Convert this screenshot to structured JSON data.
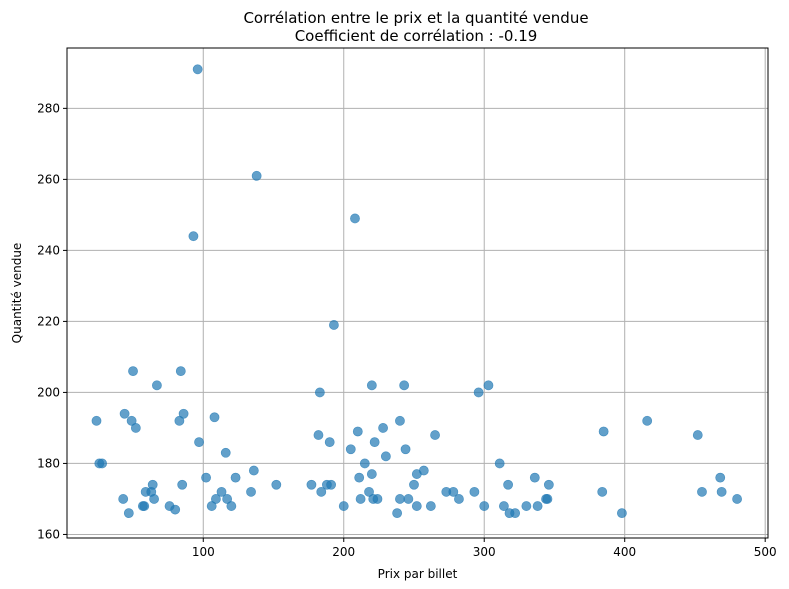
{
  "chart_data": {
    "type": "scatter",
    "title": "Corrélation entre le prix et la quantité vendue",
    "subtitle": "Coefficient de corrélation : -0.19",
    "xlabel": "Prix par billet",
    "ylabel": "Quantité vendue",
    "xlim": [
      3,
      502
    ],
    "ylim": [
      159,
      297
    ],
    "xticks": [
      100,
      200,
      300,
      400,
      500
    ],
    "yticks": [
      160,
      180,
      200,
      220,
      240,
      260,
      280
    ],
    "grid": true,
    "point_color": "#1f77b4",
    "point_alpha": 0.7,
    "points": [
      {
        "x": 24,
        "y": 192
      },
      {
        "x": 26,
        "y": 180
      },
      {
        "x": 28,
        "y": 180
      },
      {
        "x": 43,
        "y": 170
      },
      {
        "x": 44,
        "y": 194
      },
      {
        "x": 47,
        "y": 166
      },
      {
        "x": 49,
        "y": 192
      },
      {
        "x": 50,
        "y": 206
      },
      {
        "x": 52,
        "y": 190
      },
      {
        "x": 57,
        "y": 168
      },
      {
        "x": 58,
        "y": 168
      },
      {
        "x": 59,
        "y": 172
      },
      {
        "x": 63,
        "y": 172
      },
      {
        "x": 64,
        "y": 174
      },
      {
        "x": 65,
        "y": 170
      },
      {
        "x": 67,
        "y": 202
      },
      {
        "x": 76,
        "y": 168
      },
      {
        "x": 80,
        "y": 167
      },
      {
        "x": 83,
        "y": 192
      },
      {
        "x": 84,
        "y": 206
      },
      {
        "x": 85,
        "y": 174
      },
      {
        "x": 86,
        "y": 194
      },
      {
        "x": 93,
        "y": 244
      },
      {
        "x": 96,
        "y": 291
      },
      {
        "x": 97,
        "y": 186
      },
      {
        "x": 102,
        "y": 176
      },
      {
        "x": 106,
        "y": 168
      },
      {
        "x": 108,
        "y": 193
      },
      {
        "x": 109,
        "y": 170
      },
      {
        "x": 113,
        "y": 172
      },
      {
        "x": 116,
        "y": 183
      },
      {
        "x": 117,
        "y": 170
      },
      {
        "x": 120,
        "y": 168
      },
      {
        "x": 123,
        "y": 176
      },
      {
        "x": 134,
        "y": 172
      },
      {
        "x": 136,
        "y": 178
      },
      {
        "x": 138,
        "y": 261
      },
      {
        "x": 152,
        "y": 174
      },
      {
        "x": 177,
        "y": 174
      },
      {
        "x": 182,
        "y": 188
      },
      {
        "x": 183,
        "y": 200
      },
      {
        "x": 184,
        "y": 172
      },
      {
        "x": 188,
        "y": 174
      },
      {
        "x": 190,
        "y": 186
      },
      {
        "x": 191,
        "y": 174
      },
      {
        "x": 193,
        "y": 219
      },
      {
        "x": 200,
        "y": 168
      },
      {
        "x": 205,
        "y": 184
      },
      {
        "x": 208,
        "y": 249
      },
      {
        "x": 210,
        "y": 189
      },
      {
        "x": 211,
        "y": 176
      },
      {
        "x": 212,
        "y": 170
      },
      {
        "x": 215,
        "y": 180
      },
      {
        "x": 218,
        "y": 172
      },
      {
        "x": 220,
        "y": 202
      },
      {
        "x": 220,
        "y": 177
      },
      {
        "x": 221,
        "y": 170
      },
      {
        "x": 222,
        "y": 186
      },
      {
        "x": 224,
        "y": 170
      },
      {
        "x": 228,
        "y": 190
      },
      {
        "x": 230,
        "y": 182
      },
      {
        "x": 238,
        "y": 166
      },
      {
        "x": 240,
        "y": 192
      },
      {
        "x": 240,
        "y": 170
      },
      {
        "x": 243,
        "y": 202
      },
      {
        "x": 244,
        "y": 184
      },
      {
        "x": 246,
        "y": 170
      },
      {
        "x": 250,
        "y": 174
      },
      {
        "x": 252,
        "y": 177
      },
      {
        "x": 252,
        "y": 168
      },
      {
        "x": 257,
        "y": 178
      },
      {
        "x": 262,
        "y": 168
      },
      {
        "x": 265,
        "y": 188
      },
      {
        "x": 273,
        "y": 172
      },
      {
        "x": 278,
        "y": 172
      },
      {
        "x": 282,
        "y": 170
      },
      {
        "x": 293,
        "y": 172
      },
      {
        "x": 296,
        "y": 200
      },
      {
        "x": 300,
        "y": 168
      },
      {
        "x": 303,
        "y": 202
      },
      {
        "x": 311,
        "y": 180
      },
      {
        "x": 314,
        "y": 168
      },
      {
        "x": 317,
        "y": 174
      },
      {
        "x": 318,
        "y": 166
      },
      {
        "x": 322,
        "y": 166
      },
      {
        "x": 330,
        "y": 168
      },
      {
        "x": 336,
        "y": 176
      },
      {
        "x": 338,
        "y": 168
      },
      {
        "x": 344,
        "y": 170
      },
      {
        "x": 345,
        "y": 170
      },
      {
        "x": 346,
        "y": 174
      },
      {
        "x": 384,
        "y": 172
      },
      {
        "x": 385,
        "y": 189
      },
      {
        "x": 398,
        "y": 166
      },
      {
        "x": 416,
        "y": 192
      },
      {
        "x": 452,
        "y": 188
      },
      {
        "x": 455,
        "y": 172
      },
      {
        "x": 468,
        "y": 176
      },
      {
        "x": 469,
        "y": 172
      },
      {
        "x": 480,
        "y": 170
      }
    ]
  }
}
